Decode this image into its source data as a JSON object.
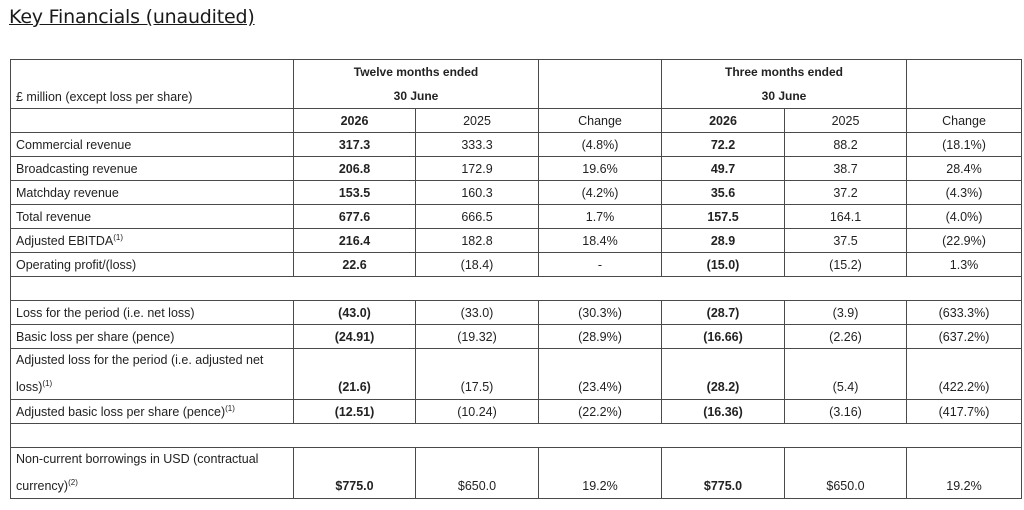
{
  "title": "Key Financials (unaudited)",
  "header": {
    "row_label": "£ million (except loss per share)",
    "group1_line1": "Twelve months ended",
    "group1_line2": "30 June",
    "group2_line1": "Three months ended",
    "group2_line2": "30 June",
    "cols": [
      "2026",
      "2025",
      "Change",
      "2026",
      "2025",
      "Change"
    ]
  },
  "rows": [
    {
      "label": "Commercial revenue",
      "sup": "",
      "v": [
        "317.3",
        "333.3",
        "(4.8%)",
        "72.2",
        "88.2",
        "(18.1%)"
      ]
    },
    {
      "label": "Broadcasting revenue",
      "sup": "",
      "v": [
        "206.8",
        "172.9",
        "19.6%",
        "49.7",
        "38.7",
        "28.4%"
      ]
    },
    {
      "label": "Matchday revenue",
      "sup": "",
      "v": [
        "153.5",
        "160.3",
        "(4.2%)",
        "35.6",
        "37.2",
        "(4.3%)"
      ]
    },
    {
      "label": "Total revenue",
      "sup": "",
      "v": [
        "677.6",
        "666.5",
        "1.7%",
        "157.5",
        "164.1",
        "(4.0%)"
      ]
    },
    {
      "label": "Adjusted EBITDA",
      "sup": "(1)",
      "v": [
        "216.4",
        "182.8",
        "18.4%",
        "28.9",
        "37.5",
        "(22.9%)"
      ]
    },
    {
      "label": "Operating profit/(loss)",
      "sup": "",
      "v": [
        "22.6",
        "(18.4)",
        "-",
        "(15.0)",
        "(15.2)",
        "1.3%"
      ]
    },
    {
      "label": "Loss for the period (i.e. net loss)",
      "sup": "",
      "v": [
        "(43.0)",
        "(33.0)",
        "(30.3%)",
        "(28.7)",
        "(3.9)",
        "(633.3%)"
      ]
    },
    {
      "label": "Basic loss per share (pence)",
      "sup": "",
      "v": [
        "(24.91)",
        "(19.32)",
        "(28.9%)",
        "(16.66)",
        "(2.26)",
        "(637.2%)"
      ]
    },
    {
      "label": "Adjusted loss for the period (i.e. adjusted net loss)",
      "sup": "(1)",
      "v": [
        "(21.6)",
        "(17.5)",
        "(23.4%)",
        "(28.2)",
        "(5.4)",
        "(422.2%)"
      ]
    },
    {
      "label": "Adjusted basic loss per share (pence)",
      "sup": "(1)",
      "v": [
        "(12.51)",
        "(10.24)",
        "(22.2%)",
        "(16.36)",
        "(3.16)",
        "(417.7%)"
      ]
    },
    {
      "label": "Non-current borrowings in USD (contractual currency)",
      "sup": "(2)",
      "v": [
        "$775.0",
        "$650.0",
        "19.2%",
        "$775.0",
        "$650.0",
        "19.2%"
      ]
    }
  ]
}
